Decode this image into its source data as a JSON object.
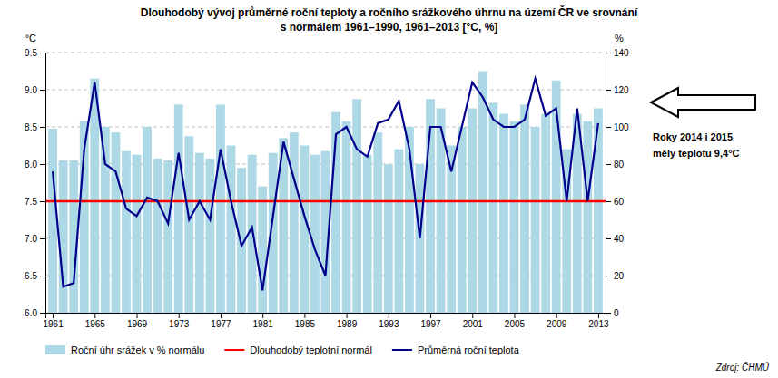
{
  "chart_data": {
    "type": "bar",
    "title": "Dlouhodobý vývoj průměrné roční teploty a ročního srážkového úhrnu na území ČR ve srovnání",
    "subtitle": "s normálem 1961–1990, 1961–2013 [°C, %]",
    "y_label": "°C",
    "y2_label": "%",
    "annotations": [
      "Roky 2014 i 2015",
      "měly teplotu 9,4°C"
    ],
    "source": "Zdroj: ČHMÚ",
    "grid": true,
    "legend": "bottom",
    "xlim": [
      1960.3,
      2013.7
    ],
    "xticks": [
      1961,
      1965,
      1969,
      1973,
      1977,
      1981,
      1985,
      1989,
      1993,
      1997,
      2001,
      2005,
      2009,
      2013
    ],
    "ylim": [
      6.0,
      9.5
    ],
    "yticks": [
      {
        "value": 6.0,
        "label": "6.0"
      },
      6.5,
      {
        "value": 7.0,
        "label": "7.0"
      },
      7.5,
      {
        "value": 8.0,
        "label": "8.0"
      },
      8.5,
      {
        "value": 9.0,
        "label": "9.0"
      },
      9.5
    ],
    "y2lim": [
      0,
      140
    ],
    "y2ticks": [
      0,
      20,
      40,
      60,
      80,
      100,
      120,
      140
    ],
    "x": [
      1961,
      1962,
      1963,
      1964,
      1965,
      1966,
      1967,
      1968,
      1969,
      1970,
      1971,
      1972,
      1973,
      1974,
      1975,
      1976,
      1977,
      1978,
      1979,
      1980,
      1981,
      1982,
      1983,
      1984,
      1985,
      1986,
      1987,
      1988,
      1989,
      1990,
      1991,
      1992,
      1993,
      1994,
      1995,
      1996,
      1997,
      1998,
      1999,
      2000,
      2001,
      2002,
      2003,
      2004,
      2005,
      2006,
      2007,
      2008,
      2009,
      2010,
      2011,
      2012,
      2013
    ],
    "series": [
      {
        "name": "Roční úhr srážek v % normálu",
        "color": "#ADD8E6",
        "axis": "y2",
        "values": [
          99,
          82,
          82,
          103,
          126,
          100,
          97,
          87,
          85,
          100,
          83,
          82,
          112,
          95,
          86,
          83,
          112,
          90,
          78,
          85,
          68,
          86,
          94,
          97,
          90,
          85,
          87,
          108,
          103,
          115,
          85,
          97,
          80,
          88,
          100,
          80,
          115,
          110,
          90,
          100,
          110,
          130,
          113,
          107,
          103,
          112,
          100,
          107,
          125,
          88,
          107,
          103,
          110
        ]
      },
      {
        "name": "Dlouhodobý teplotní normál",
        "type": "hline",
        "color": "#FF0000",
        "value": 7.5
      },
      {
        "name": "Průměrná roční teplota",
        "type": "line",
        "color": "#00008B",
        "values": [
          7.9,
          6.35,
          6.4,
          8.2,
          9.1,
          8.0,
          7.9,
          7.4,
          7.3,
          7.55,
          7.5,
          7.2,
          8.15,
          7.25,
          7.5,
          7.25,
          8.2,
          7.5,
          6.9,
          7.15,
          6.3,
          7.3,
          8.3,
          7.8,
          7.3,
          6.85,
          6.5,
          8.4,
          8.5,
          8.2,
          8.1,
          8.55,
          8.6,
          8.85,
          8.2,
          7.0,
          8.5,
          8.5,
          7.9,
          8.5,
          9.1,
          8.9,
          8.6,
          8.5,
          8.5,
          8.6,
          9.15,
          8.65,
          8.75,
          7.5,
          8.75,
          7.5,
          8.55
        ]
      }
    ]
  }
}
